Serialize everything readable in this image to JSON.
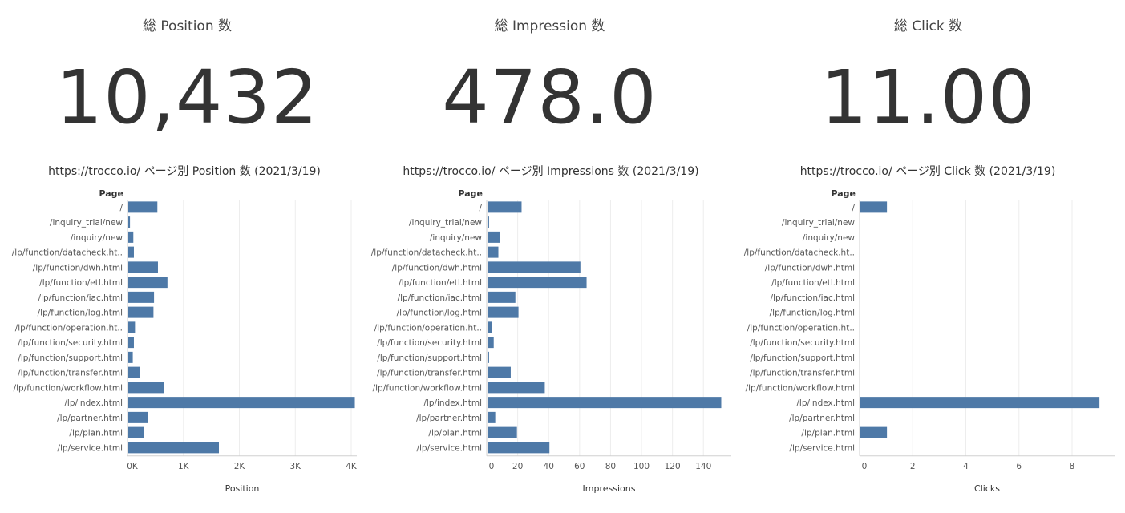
{
  "kpis": [
    {
      "title": "総 Position 数",
      "value": "10,432"
    },
    {
      "title": "総 Impression 数",
      "value": "478.0"
    },
    {
      "title": "総 Click 数",
      "value": "11.00"
    }
  ],
  "chart_data": [
    {
      "type": "bar",
      "orientation": "horizontal",
      "title": "https://trocco.io/ ページ別 Position 数 (2021/3/19)",
      "category_header": "Page",
      "xlabel": "Position",
      "xlim": [
        0,
        4100
      ],
      "ticks": [
        0,
        1000,
        2000,
        3000,
        4000
      ],
      "tick_labels": [
        "0K",
        "1K",
        "2K",
        "3K",
        "4K"
      ],
      "categories": [
        "/",
        "/inquiry_trial/new",
        "/inquiry/new",
        "/lp/function/datacheck.ht..",
        "/lp/function/dwh.html",
        "/lp/function/etl.html",
        "/lp/function/iac.html",
        "/lp/function/log.html",
        "/lp/function/operation.ht..",
        "/lp/function/security.html",
        "/lp/function/support.html",
        "/lp/function/transfer.html",
        "/lp/function/workflow.html",
        "/lp/index.html",
        "/lp/partner.html",
        "/lp/plan.html",
        "/lp/service.html"
      ],
      "values": [
        520,
        30,
        90,
        100,
        530,
        700,
        460,
        450,
        120,
        100,
        80,
        210,
        640,
        4050,
        350,
        280,
        1620
      ],
      "color": "#4e79a7"
    },
    {
      "type": "bar",
      "orientation": "horizontal",
      "title": "https://trocco.io/ ページ別 Impressions 数 (2021/3/19)",
      "category_header": "Page",
      "xlabel": "Impressions",
      "xlim": [
        0,
        158
      ],
      "ticks": [
        0,
        20,
        40,
        60,
        80,
        100,
        120,
        140
      ],
      "tick_labels": [
        "0",
        "20",
        "40",
        "60",
        "80",
        "100",
        "120",
        "140"
      ],
      "categories": [
        "/",
        "/inquiry_trial/new",
        "/inquiry/new",
        "/lp/function/datacheck.ht..",
        "/lp/function/dwh.html",
        "/lp/function/etl.html",
        "/lp/function/iac.html",
        "/lp/function/log.html",
        "/lp/function/operation.ht..",
        "/lp/function/security.html",
        "/lp/function/support.html",
        "/lp/function/transfer.html",
        "/lp/function/workflow.html",
        "/lp/index.html",
        "/lp/partner.html",
        "/lp/plan.html",
        "/lp/service.html"
      ],
      "values": [
        22,
        1,
        8,
        7,
        60,
        64,
        18,
        20,
        3,
        4,
        1,
        15,
        37,
        151,
        5,
        19,
        40
      ],
      "color": "#4e79a7"
    },
    {
      "type": "bar",
      "orientation": "horizontal",
      "title": "https://trocco.io/ ページ別 Click 数 (2021/3/19)",
      "category_header": "Page",
      "xlabel": "Clicks",
      "xlim": [
        0,
        9.6
      ],
      "ticks": [
        0,
        2,
        4,
        6,
        8
      ],
      "tick_labels": [
        "0",
        "2",
        "4",
        "6",
        "8"
      ],
      "categories": [
        "/",
        "/inquiry_trial/new",
        "/inquiry/new",
        "/lp/function/datacheck.ht..",
        "/lp/function/dwh.html",
        "/lp/function/etl.html",
        "/lp/function/iac.html",
        "/lp/function/log.html",
        "/lp/function/operation.ht..",
        "/lp/function/security.html",
        "/lp/function/support.html",
        "/lp/function/transfer.html",
        "/lp/function/workflow.html",
        "/lp/index.html",
        "/lp/partner.html",
        "/lp/plan.html",
        "/lp/service.html"
      ],
      "values": [
        1,
        0,
        0,
        0,
        0,
        0,
        0,
        0,
        0,
        0,
        0,
        0,
        0,
        9,
        0,
        1,
        0
      ],
      "color": "#4e79a7"
    }
  ]
}
